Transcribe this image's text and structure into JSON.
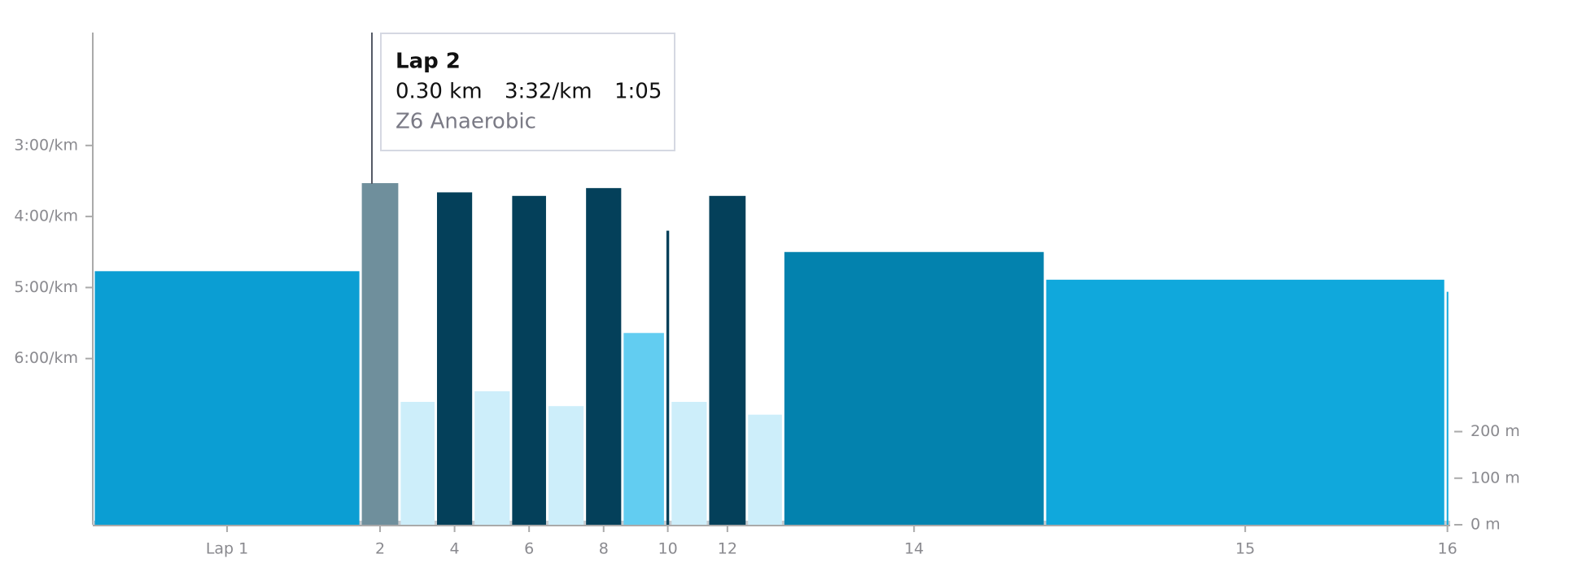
{
  "chart_data": {
    "type": "bar",
    "categories": [
      "Lap 1",
      "2",
      null,
      "4",
      null,
      "6",
      null,
      "8",
      null,
      "10",
      null,
      "12",
      null,
      "14",
      "15",
      "16"
    ],
    "values": [
      4.77,
      3.53,
      6.61,
      3.66,
      6.46,
      3.71,
      6.67,
      3.6,
      5.64,
      4.2,
      6.61,
      3.71,
      6.79,
      4.5,
      4.89,
      5.06
    ],
    "distances": [
      2.06,
      0.3,
      0.28,
      0.29,
      0.29,
      0.28,
      0.29,
      0.29,
      0.33,
      0.04,
      0.29,
      0.3,
      0.28,
      2.02,
      3.09,
      0.03
    ],
    "colors": [
      "#0b9ed3",
      "#6f8f9c",
      "#cdeefa",
      "#04405a",
      "#cdeefa",
      "#04405a",
      "#cdeefa",
      "#04405a",
      "#62cdf1",
      "#04405a",
      "#cdeefa",
      "#04405a",
      "#cdeefa",
      "#0382ae",
      "#10a8dc",
      "#10a8dc"
    ],
    "ylim": [
      8.34,
      1.41
    ],
    "yticks": [
      {
        "value": 3,
        "label": "3:00/km"
      },
      {
        "value": 4,
        "label": "4:00/km"
      },
      {
        "value": 5,
        "label": "5:00/km"
      },
      {
        "value": 6,
        "label": "6:00/km"
      }
    ],
    "y2lim": [
      0,
      1057
    ],
    "y2ticks": [
      {
        "value": 0,
        "label": "0 m"
      },
      {
        "value": 100,
        "label": "100 m"
      },
      {
        "value": 200,
        "label": "200 m"
      }
    ],
    "tooltip": {
      "title": "Lap 2",
      "distance": "0.30 km",
      "pace": "3:32/km",
      "time": "1:05",
      "zone": "Z6 Anaerobic"
    }
  }
}
